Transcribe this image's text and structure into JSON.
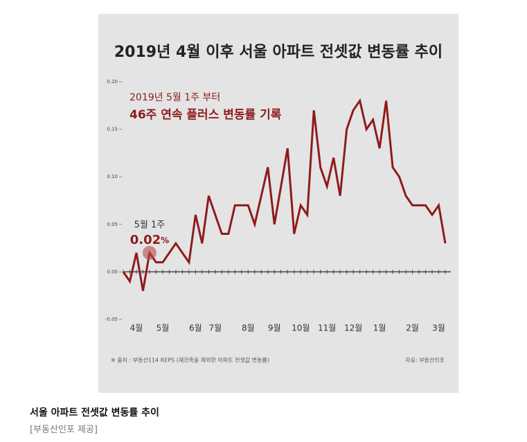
{
  "chart_data": {
    "type": "line",
    "title": "2019년 4월 이후 서울 아파트 전셋값 변동률 추이",
    "subtitle": [
      "2019년 5월 1주 부터",
      "46주 연속 플러스 변동률 기록"
    ],
    "categories": [
      null,
      null,
      "4월",
      null,
      null,
      null,
      "5월",
      null,
      null,
      null,
      null,
      "6월",
      null,
      null,
      "7월",
      null,
      null,
      null,
      null,
      "8월",
      null,
      null,
      null,
      "9월",
      null,
      null,
      null,
      "10월",
      null,
      null,
      null,
      "11월",
      null,
      null,
      null,
      "12월",
      null,
      null,
      null,
      "1월",
      null,
      null,
      null,
      null,
      "2월",
      null,
      null,
      null,
      "3월",
      null
    ],
    "series": [
      {
        "name": "전셋값 변동률",
        "color": "#8e1b1b",
        "values": [
          0.0,
          -0.01,
          0.02,
          -0.02,
          0.02,
          0.01,
          0.01,
          0.02,
          0.03,
          0.02,
          0.01,
          0.06,
          0.03,
          0.08,
          0.06,
          0.04,
          0.04,
          0.07,
          0.07,
          0.07,
          0.05,
          0.08,
          0.11,
          0.05,
          0.09,
          0.13,
          0.04,
          0.07,
          0.06,
          0.17,
          0.11,
          0.09,
          0.12,
          0.08,
          0.15,
          0.17,
          0.18,
          0.15,
          0.16,
          0.13,
          0.18,
          0.11,
          0.1,
          0.08,
          0.07,
          0.07,
          0.07,
          0.06,
          0.07,
          0.03
        ]
      }
    ],
    "ylim": [
      -0.05,
      0.2
    ],
    "yticks": [
      {
        "value": 0.2,
        "label": "0.20"
      },
      {
        "value": 0.15,
        "label": "0.15"
      },
      {
        "value": 0.1,
        "label": "0.10"
      },
      {
        "value": 0.05,
        "label": "0.05"
      },
      {
        "value": 0,
        "label": "0.00"
      },
      {
        "value": -0.05,
        "label": "-0.05"
      }
    ],
    "annotation": {
      "point": 4,
      "text": "5월 1주",
      "value_label": "0.02",
      "unit": "%"
    },
    "source": "※ 출처 : 부동산114 REPS (재건축을 제외한 아파트 전셋값 변동률)",
    "credit": "자료: 부동산인포"
  },
  "caption": {
    "title": "서울 아파트 전셋값 변동률 추이",
    "credit": "[부동산인포 제공]"
  }
}
